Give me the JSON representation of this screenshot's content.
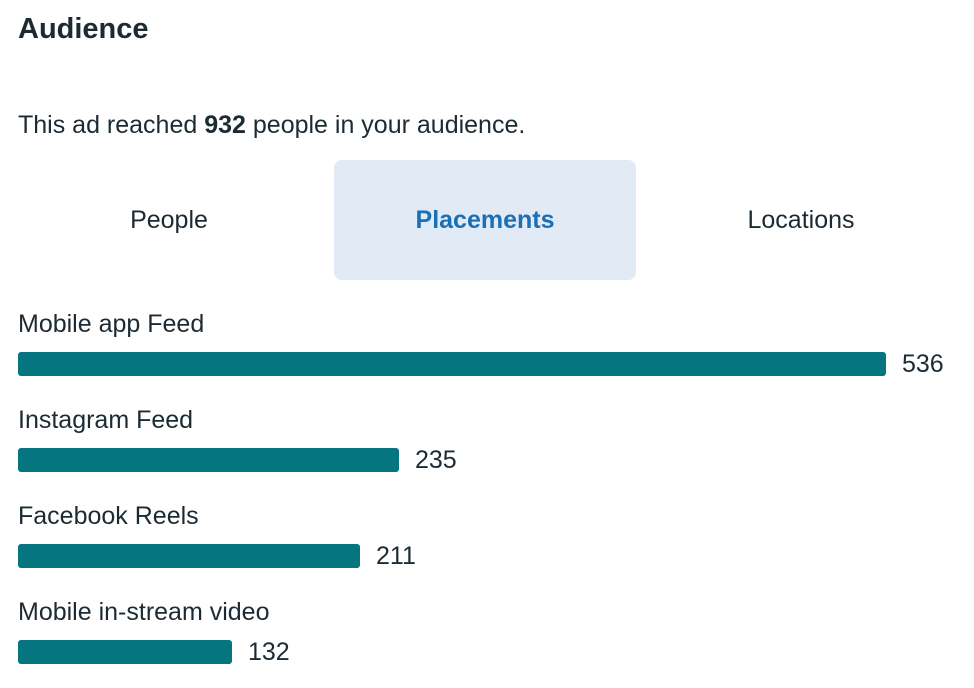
{
  "section": {
    "title": "Audience"
  },
  "summary": {
    "prefix": "This ad reached ",
    "count": "932",
    "suffix": " people in your audience."
  },
  "tabs": [
    {
      "label": "People",
      "active": false
    },
    {
      "label": "Placements",
      "active": true
    },
    {
      "label": "Locations",
      "active": false
    }
  ],
  "colors": {
    "bar": "#057580",
    "active_tab_bg": "#e2eaf6",
    "active_tab_text": "#1a6fb5"
  },
  "placements": [
    {
      "label": "Mobile app Feed",
      "value": 536
    },
    {
      "label": "Instagram Feed",
      "value": 235
    },
    {
      "label": "Facebook Reels",
      "value": 211
    },
    {
      "label": "Mobile in-stream video",
      "value": 132
    }
  ]
}
